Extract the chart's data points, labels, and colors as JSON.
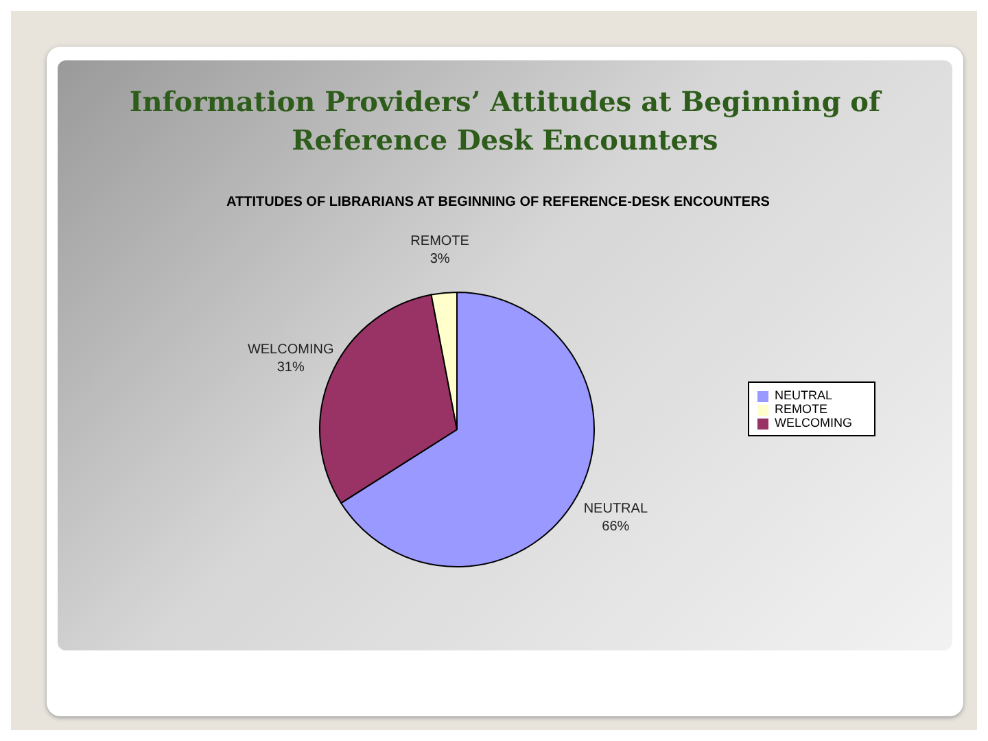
{
  "chart_data": {
    "type": "pie",
    "title": "Information Providers’ Attitudes at Beginning of Reference Desk Encounters",
    "subtitle": "ATTITUDES OF LIBRARIANS AT BEGINNING OF REFERENCE-DESK ENCOUNTERS",
    "categories": [
      "NEUTRAL",
      "WELCOMING",
      "REMOTE"
    ],
    "values": [
      66,
      31,
      3
    ],
    "value_labels": [
      "66%",
      "31%",
      "3%"
    ],
    "colors": [
      "#9999ff",
      "#993366",
      "#ffffcc"
    ],
    "legend": "right"
  }
}
